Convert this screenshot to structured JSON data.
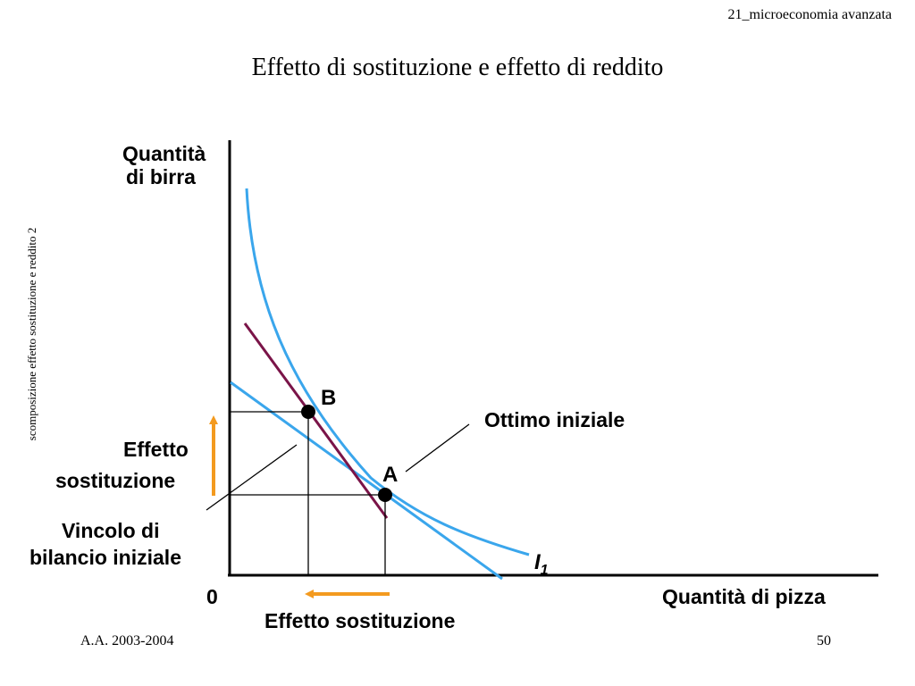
{
  "header": {
    "course": "21_microeconomia avanzata"
  },
  "title": "Effetto di sostituzione e effetto di reddito",
  "side_note": "scomposizione effetto sostituzione e reddito 2",
  "footer": {
    "academic_year": "A.A. 2003-2004",
    "page_number": "50"
  },
  "diagram": {
    "y_axis_label_line1": "Quantità",
    "y_axis_label_line2": "di birra",
    "x_axis_label": "Quantità di pizza",
    "origin_label": "0",
    "point_b": "B",
    "point_a": "A",
    "optimum_label": "Ottimo iniziale",
    "budget_label_line1": "Vincolo di",
    "budget_label_line2": "bilancio iniziale",
    "substitution_vertical_line1": "Effetto",
    "substitution_vertical_line2": "sostituzione",
    "substitution_horizontal": "Effetto sostituzione",
    "indifference_label": "I",
    "indifference_subscript": "1",
    "colors": {
      "indifference_curve": "#3aa6ec",
      "budget_line": "#3aa6ec",
      "compensated_budget": "#7a1448",
      "arrow": "#f39a1f",
      "axes": "#000000"
    }
  }
}
